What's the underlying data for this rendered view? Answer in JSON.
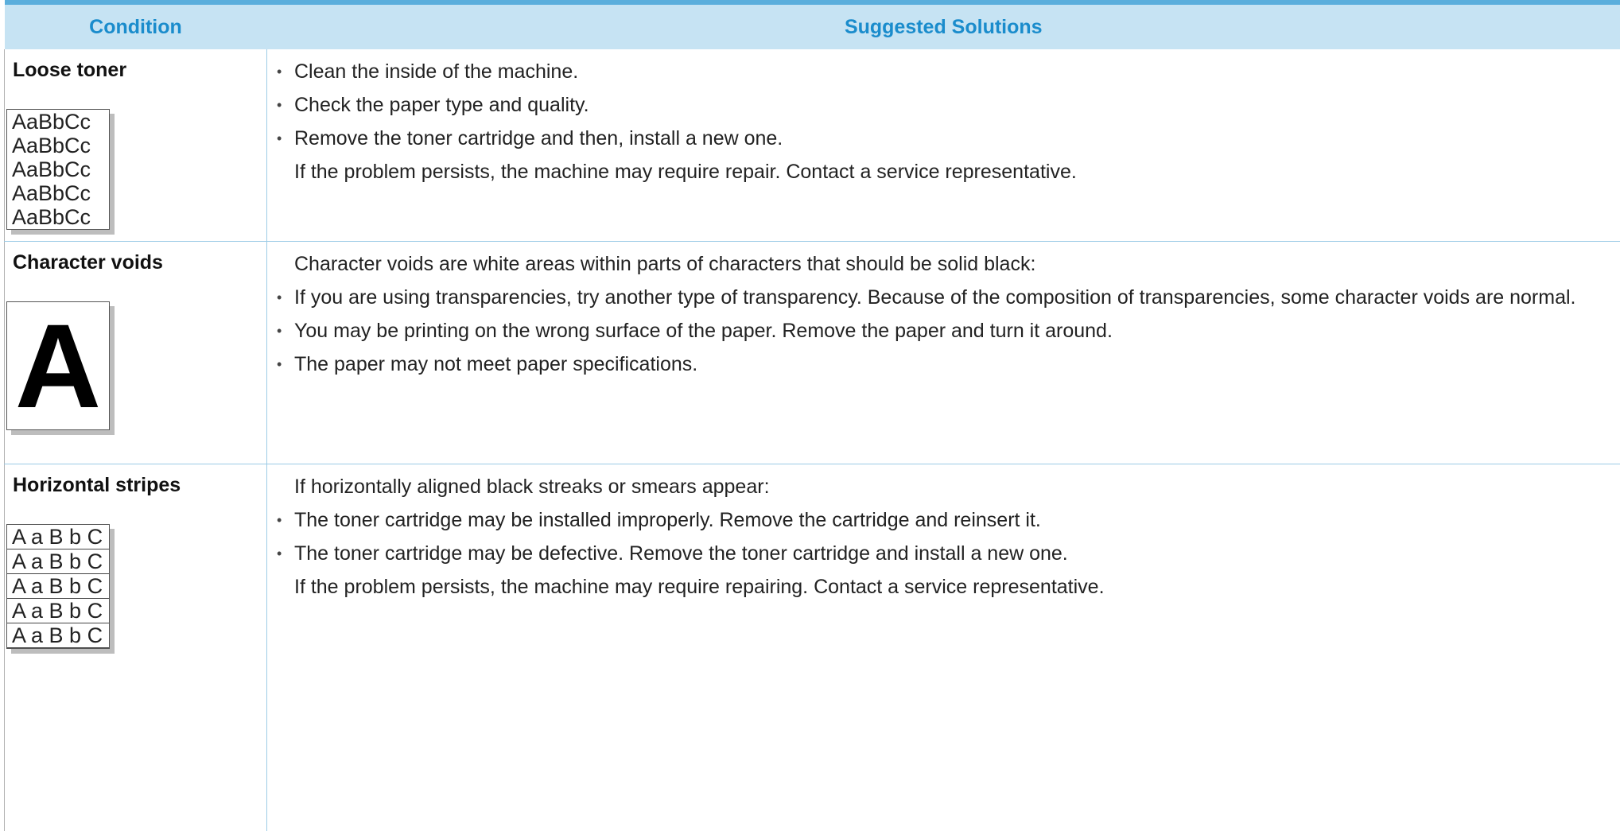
{
  "table": {
    "headers": [
      "Condition",
      "Suggested Solutions"
    ],
    "rows": [
      {
        "condition": "Loose toner",
        "illustration": [
          "AaBbCc",
          "AaBbCc",
          "AaBbCc",
          "AaBbCc",
          "AaBbCc"
        ],
        "bullets": [
          "Clean the inside of the machine.",
          "Check the paper type and quality.",
          "Remove the toner cartridge and then, install a new one."
        ],
        "note": "If the problem persists, the machine may require repair. Contact a service representative."
      },
      {
        "condition": "Character voids",
        "illustration": [
          "A"
        ],
        "intro": "Character voids are white areas within parts of characters that should be solid black:",
        "bullets": [
          "If you are using transparencies, try another type of transparency. Because of the composition of transparencies, some character voids are normal.",
          "You may be printing on the wrong surface of the paper. Remove the paper and turn it around.",
          "The paper may not meet paper specifications."
        ]
      },
      {
        "condition": "Horizontal stripes",
        "illustration": [
          "A a B b C",
          "A a B b C",
          "A a B b C",
          "A a B b C",
          "A a B b C"
        ],
        "intro": "If horizontally aligned black streaks or smears appear:",
        "bullets": [
          "The toner cartridge may be installed improperly. Remove the cartridge and reinsert it.",
          "The toner cartridge may be defective. Remove the toner cartridge and install a new one."
        ],
        "note": "If the problem persists, the machine may require repairing. Contact a service representative."
      }
    ]
  }
}
